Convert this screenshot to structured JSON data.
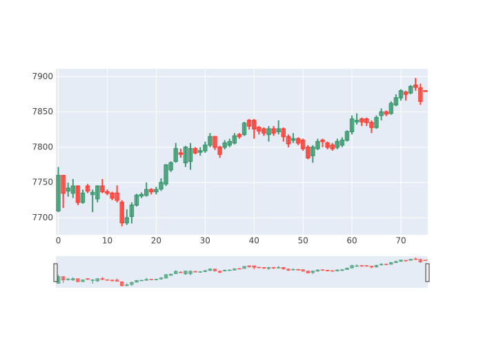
{
  "chart_data": {
    "type": "candlestick",
    "x": [
      0,
      1,
      2,
      3,
      4,
      5,
      6,
      7,
      8,
      9,
      10,
      11,
      12,
      13,
      14,
      15,
      16,
      17,
      18,
      19,
      20,
      21,
      22,
      23,
      24,
      25,
      26,
      27,
      28,
      29,
      30,
      31,
      32,
      33,
      34,
      35,
      36,
      37,
      38,
      39,
      40,
      41,
      42,
      43,
      44,
      45,
      46,
      47,
      48,
      49,
      50,
      51,
      52,
      53,
      54,
      55,
      56,
      57,
      58,
      59,
      60,
      61,
      62,
      63,
      64,
      65,
      66,
      67,
      68,
      69,
      70,
      71,
      72,
      73,
      74,
      75
    ],
    "open": [
      7710,
      7760,
      7738,
      7735,
      7745,
      7722,
      7745,
      7733,
      7727,
      7745,
      7737,
      7735,
      7735,
      7722,
      7693,
      7702,
      7718,
      7731,
      7732,
      7740,
      7737,
      7741,
      7748,
      7768,
      7780,
      7792,
      7778,
      7780,
      7798,
      7793,
      7795,
      7803,
      7815,
      7800,
      7800,
      7803,
      7806,
      7818,
      7818,
      7838,
      7838,
      7828,
      7826,
      7818,
      7826,
      7822,
      7826,
      7815,
      7810,
      7812,
      7810,
      7800,
      7788,
      7798,
      7810,
      7806,
      7803,
      7800,
      7803,
      7810,
      7822,
      7836,
      7840,
      7840,
      7835,
      7828,
      7845,
      7850,
      7848,
      7860,
      7870,
      7878,
      7877,
      7888,
      7884,
      7880
    ],
    "high": [
      7772,
      7760,
      7750,
      7755,
      7746,
      7740,
      7748,
      7740,
      7746,
      7755,
      7740,
      7737,
      7746,
      7725,
      7712,
      7722,
      7734,
      7736,
      7750,
      7742,
      7744,
      7756,
      7776,
      7780,
      7806,
      7798,
      7802,
      7806,
      7800,
      7800,
      7808,
      7820,
      7816,
      7802,
      7810,
      7812,
      7820,
      7820,
      7836,
      7840,
      7840,
      7830,
      7828,
      7830,
      7830,
      7838,
      7828,
      7818,
      7820,
      7814,
      7812,
      7803,
      7803,
      7812,
      7812,
      7808,
      7806,
      7812,
      7814,
      7824,
      7845,
      7848,
      7842,
      7842,
      7838,
      7845,
      7855,
      7852,
      7865,
      7875,
      7882,
      7880,
      7888,
      7898,
      7890,
      7880
    ],
    "low": [
      7708,
      7714,
      7730,
      7728,
      7718,
      7720,
      7735,
      7708,
      7722,
      7735,
      7732,
      7725,
      7722,
      7688,
      7690,
      7692,
      7716,
      7728,
      7730,
      7733,
      7733,
      7738,
      7745,
      7765,
      7778,
      7785,
      7772,
      7768,
      7790,
      7788,
      7792,
      7800,
      7796,
      7785,
      7797,
      7800,
      7804,
      7812,
      7816,
      7825,
      7812,
      7818,
      7816,
      7808,
      7816,
      7818,
      7808,
      7800,
      7806,
      7803,
      7795,
      7783,
      7778,
      7796,
      7800,
      7797,
      7795,
      7797,
      7800,
      7808,
      7818,
      7832,
      7830,
      7830,
      7820,
      7826,
      7838,
      7844,
      7846,
      7858,
      7866,
      7866,
      7875,
      7880,
      7860,
      7879
    ],
    "close": [
      7760,
      7735,
      7742,
      7745,
      7722,
      7735,
      7738,
      7736,
      7745,
      7737,
      7735,
      7728,
      7725,
      7693,
      7700,
      7718,
      7732,
      7733,
      7740,
      7737,
      7740,
      7750,
      7775,
      7778,
      7798,
      7790,
      7800,
      7798,
      7792,
      7795,
      7803,
      7815,
      7800,
      7790,
      7806,
      7808,
      7816,
      7815,
      7834,
      7830,
      7826,
      7823,
      7820,
      7826,
      7820,
      7826,
      7815,
      7805,
      7812,
      7806,
      7798,
      7785,
      7800,
      7808,
      7808,
      7800,
      7798,
      7808,
      7810,
      7822,
      7840,
      7838,
      7836,
      7835,
      7828,
      7842,
      7850,
      7847,
      7862,
      7870,
      7880,
      7875,
      7886,
      7885,
      7865,
      7879
    ],
    "increasing_color": "#3d9970",
    "decreasing_color": "#ff4136",
    "xlim": [
      -0.5,
      75.5
    ],
    "ylim": [
      7676,
      7911
    ],
    "xticks": [
      0,
      10,
      20,
      30,
      40,
      50,
      60,
      70
    ],
    "yticks": [
      7700,
      7750,
      7800,
      7850,
      7900
    ],
    "grid": true,
    "rangeslider": true
  }
}
